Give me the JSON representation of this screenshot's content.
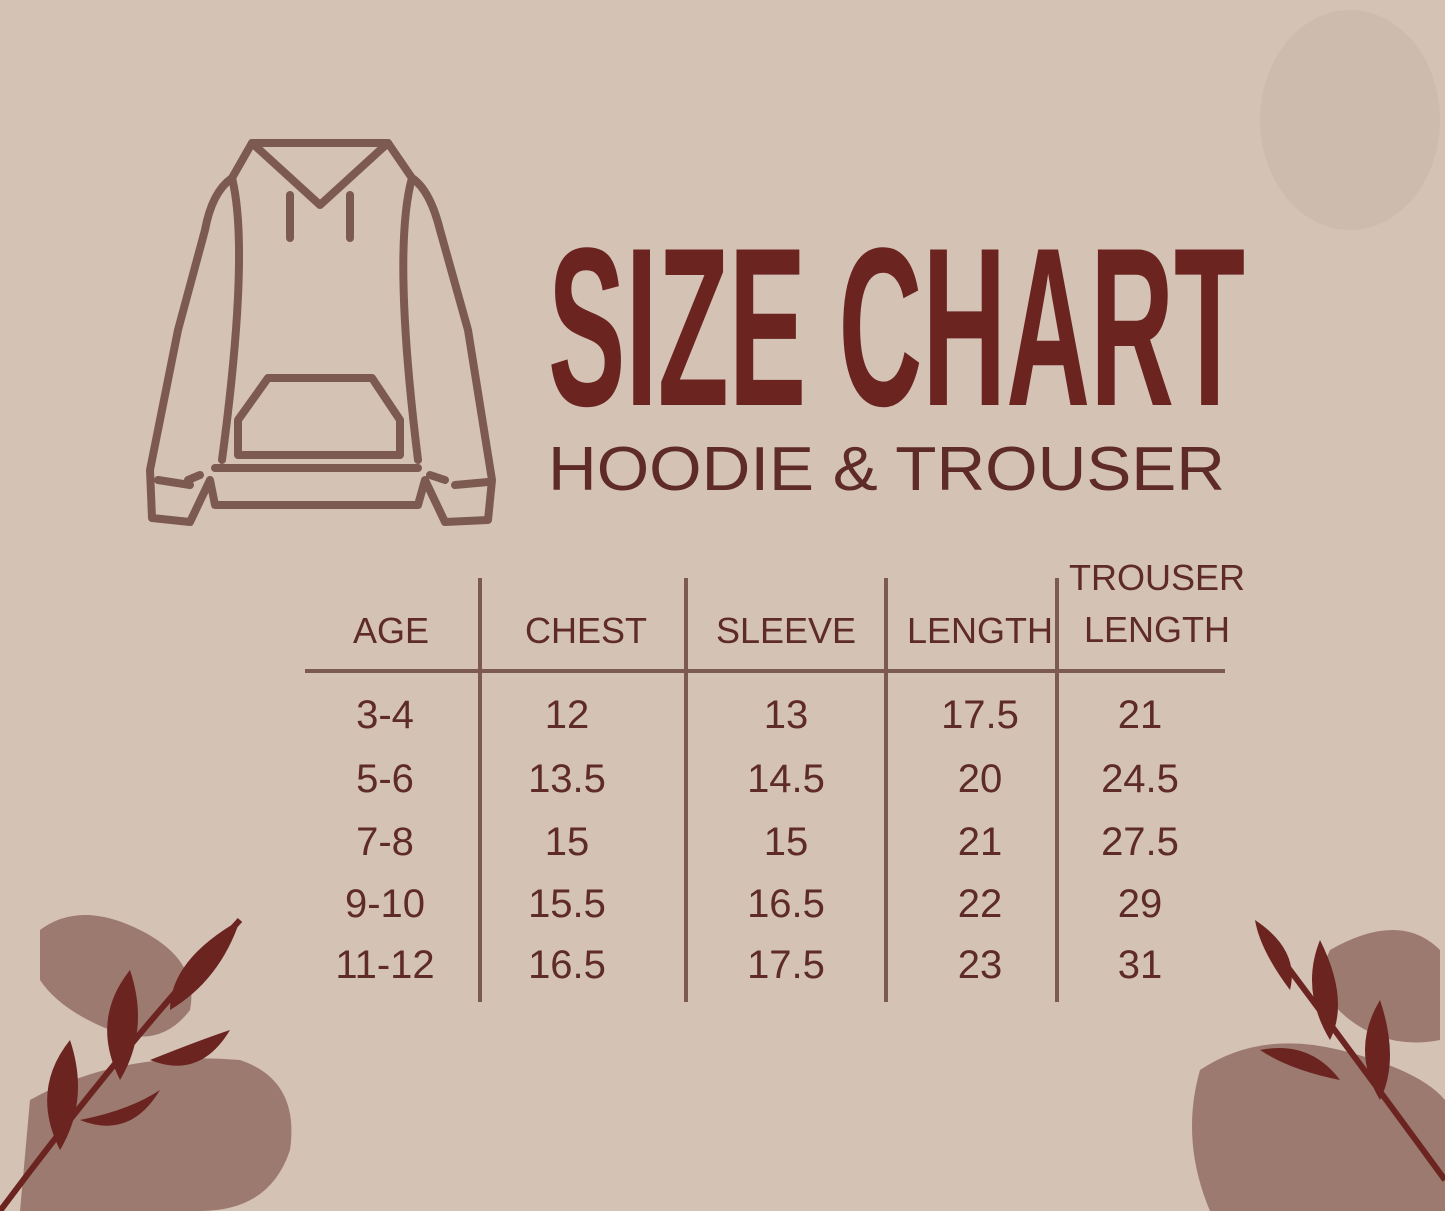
{
  "title": "SIZE CHART",
  "subtitle": "HOODIE & TROUSER",
  "table": {
    "header": [
      "AGE",
      "CHEST",
      "SLEEVE",
      "LENGTH",
      "TROUSER LENGTH"
    ],
    "rows": [
      [
        "3-4",
        "12",
        "13",
        "17.5",
        "21"
      ],
      [
        "5-6",
        "13.5",
        "14.5",
        "20",
        "24.5"
      ],
      [
        "7-8",
        "15",
        "15",
        "21",
        "27.5"
      ],
      [
        "9-10",
        "15.5",
        "16.5",
        "22",
        "29"
      ],
      [
        "11-12",
        "16.5",
        "17.5",
        "23",
        "31"
      ]
    ]
  }
}
